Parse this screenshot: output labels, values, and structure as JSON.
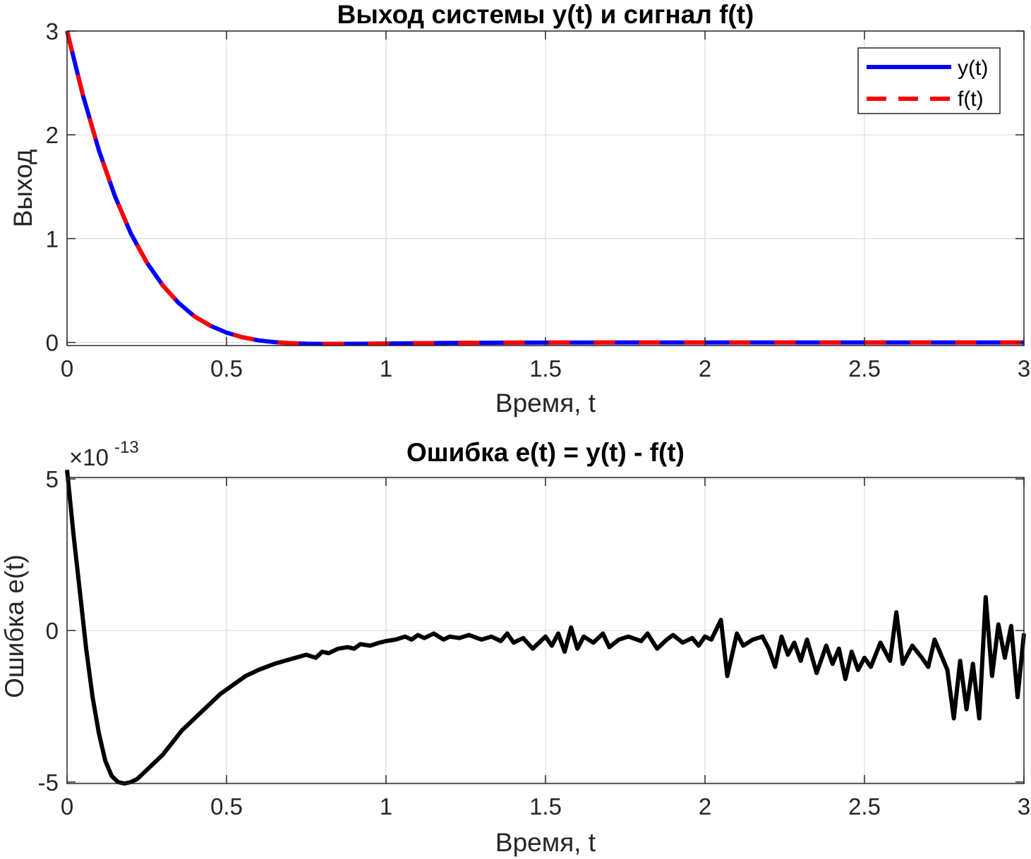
{
  "chart_data": [
    {
      "type": "line",
      "title": "Выход системы y(t) и сигнал f(t)",
      "xlabel": "Время, t",
      "ylabel": "Выход",
      "xlim": [
        0,
        3
      ],
      "ylim": [
        -0.03,
        3
      ],
      "xticks": [
        0,
        0.5,
        1,
        1.5,
        2,
        2.5,
        3
      ],
      "xtick_labels": [
        "0",
        "0.5",
        "1",
        "1.5",
        "2",
        "2.5",
        "3"
      ],
      "yticks": [
        0,
        1,
        2,
        3
      ],
      "ytick_labels": [
        "0",
        "1",
        "2",
        "3"
      ],
      "grid": true,
      "legend_position": "top-right",
      "series": [
        {
          "name": "y(t)",
          "color": "#0000ff",
          "style": "solid",
          "x": [
            0,
            0.05,
            0.1,
            0.15,
            0.2,
            0.25,
            0.3,
            0.35,
            0.4,
            0.45,
            0.5,
            0.55,
            0.6,
            0.65,
            0.7,
            0.75,
            0.8,
            0.9,
            1.0,
            1.1,
            1.2,
            1.3,
            1.5,
            1.75,
            2.0,
            2.5,
            3.0
          ],
          "y": [
            3.0,
            2.38,
            1.85,
            1.41,
            1.05,
            0.77,
            0.55,
            0.38,
            0.25,
            0.16,
            0.095,
            0.05,
            0.02,
            0.003,
            -0.007,
            -0.012,
            -0.014,
            -0.013,
            -0.01,
            -0.007,
            -0.005,
            -0.003,
            -0.001,
            0.0,
            0.0,
            0.0,
            0.0
          ]
        },
        {
          "name": "f(t)",
          "color": "#ff0000",
          "style": "dashed",
          "x": [
            0,
            0.05,
            0.1,
            0.15,
            0.2,
            0.25,
            0.3,
            0.35,
            0.4,
            0.45,
            0.5,
            0.55,
            0.6,
            0.65,
            0.7,
            0.75,
            0.8,
            0.9,
            1.0,
            1.1,
            1.2,
            1.3,
            1.5,
            1.75,
            2.0,
            2.5,
            3.0
          ],
          "y": [
            3.0,
            2.38,
            1.85,
            1.41,
            1.05,
            0.77,
            0.55,
            0.38,
            0.25,
            0.16,
            0.095,
            0.05,
            0.02,
            0.003,
            -0.007,
            -0.012,
            -0.014,
            -0.013,
            -0.01,
            -0.007,
            -0.005,
            -0.003,
            -0.001,
            0.0,
            0.0,
            0.0,
            0.0
          ]
        }
      ]
    },
    {
      "type": "line",
      "title": "Ошибка e(t) = y(t) - f(t)",
      "xlabel": "Время, t",
      "ylabel": "Ошибка e(t)",
      "exponent_label": "×10",
      "exponent_power": "-13",
      "xlim": [
        0,
        3
      ],
      "ylim": [
        -5.05,
        5.05
      ],
      "xticks": [
        0,
        0.5,
        1,
        1.5,
        2,
        2.5,
        3
      ],
      "xtick_labels": [
        "0",
        "0.5",
        "1",
        "1.5",
        "2",
        "2.5",
        "3"
      ],
      "yticks": [
        -5,
        0,
        5
      ],
      "ytick_labels": [
        "-5",
        "0",
        "5"
      ],
      "grid": true,
      "series": [
        {
          "color": "#000000",
          "style": "solid",
          "x": [
            0,
            0.02,
            0.04,
            0.06,
            0.08,
            0.1,
            0.12,
            0.14,
            0.16,
            0.18,
            0.2,
            0.22,
            0.24,
            0.26,
            0.28,
            0.3,
            0.33,
            0.36,
            0.4,
            0.44,
            0.48,
            0.52,
            0.56,
            0.6,
            0.65,
            0.7,
            0.75,
            0.78,
            0.8,
            0.82,
            0.85,
            0.88,
            0.9,
            0.92,
            0.95,
            0.98,
            1.0,
            1.03,
            1.06,
            1.08,
            1.1,
            1.12,
            1.15,
            1.18,
            1.2,
            1.23,
            1.26,
            1.3,
            1.33,
            1.36,
            1.38,
            1.4,
            1.43,
            1.46,
            1.5,
            1.52,
            1.54,
            1.56,
            1.58,
            1.6,
            1.62,
            1.65,
            1.68,
            1.7,
            1.73,
            1.76,
            1.8,
            1.82,
            1.85,
            1.88,
            1.9,
            1.93,
            1.96,
            1.98,
            2.0,
            2.02,
            2.05,
            2.07,
            2.1,
            2.12,
            2.15,
            2.18,
            2.2,
            2.22,
            2.24,
            2.26,
            2.28,
            2.3,
            2.32,
            2.35,
            2.38,
            2.4,
            2.42,
            2.44,
            2.46,
            2.48,
            2.5,
            2.52,
            2.55,
            2.58,
            2.6,
            2.62,
            2.65,
            2.68,
            2.7,
            2.72,
            2.74,
            2.76,
            2.78,
            2.8,
            2.82,
            2.84,
            2.86,
            2.88,
            2.9,
            2.92,
            2.94,
            2.96,
            2.98,
            3.0
          ],
          "y": [
            5.3,
            3.2,
            1.3,
            -0.6,
            -2.2,
            -3.4,
            -4.3,
            -4.8,
            -5.0,
            -5.05,
            -5.0,
            -4.9,
            -4.7,
            -4.5,
            -4.3,
            -4.1,
            -3.7,
            -3.3,
            -2.9,
            -2.5,
            -2.1,
            -1.8,
            -1.5,
            -1.3,
            -1.1,
            -0.95,
            -0.8,
            -0.9,
            -0.7,
            -0.75,
            -0.6,
            -0.55,
            -0.6,
            -0.45,
            -0.5,
            -0.4,
            -0.35,
            -0.3,
            -0.2,
            -0.3,
            -0.15,
            -0.25,
            -0.1,
            -0.3,
            -0.2,
            -0.25,
            -0.15,
            -0.3,
            -0.2,
            -0.35,
            -0.1,
            -0.4,
            -0.25,
            -0.6,
            -0.2,
            -0.5,
            -0.1,
            -0.7,
            0.1,
            -0.6,
            -0.2,
            -0.4,
            -0.1,
            -0.55,
            -0.3,
            -0.2,
            -0.35,
            -0.1,
            -0.6,
            -0.3,
            -0.15,
            -0.4,
            -0.25,
            -0.5,
            -0.2,
            -0.3,
            0.35,
            -1.5,
            -0.1,
            -0.5,
            -0.3,
            -0.2,
            -0.6,
            -1.2,
            -0.2,
            -0.8,
            -0.4,
            -1.0,
            -0.3,
            -1.4,
            -0.5,
            -1.1,
            -0.6,
            -1.6,
            -0.7,
            -1.3,
            -0.9,
            -1.2,
            -0.4,
            -1.0,
            0.6,
            -1.1,
            -0.5,
            -0.9,
            -1.2,
            -0.3,
            -0.8,
            -1.3,
            -2.9,
            -1.0,
            -2.6,
            -1.1,
            -2.9,
            1.1,
            -1.5,
            0.2,
            -0.9,
            0.15,
            -2.2,
            -0.1
          ]
        }
      ]
    }
  ]
}
